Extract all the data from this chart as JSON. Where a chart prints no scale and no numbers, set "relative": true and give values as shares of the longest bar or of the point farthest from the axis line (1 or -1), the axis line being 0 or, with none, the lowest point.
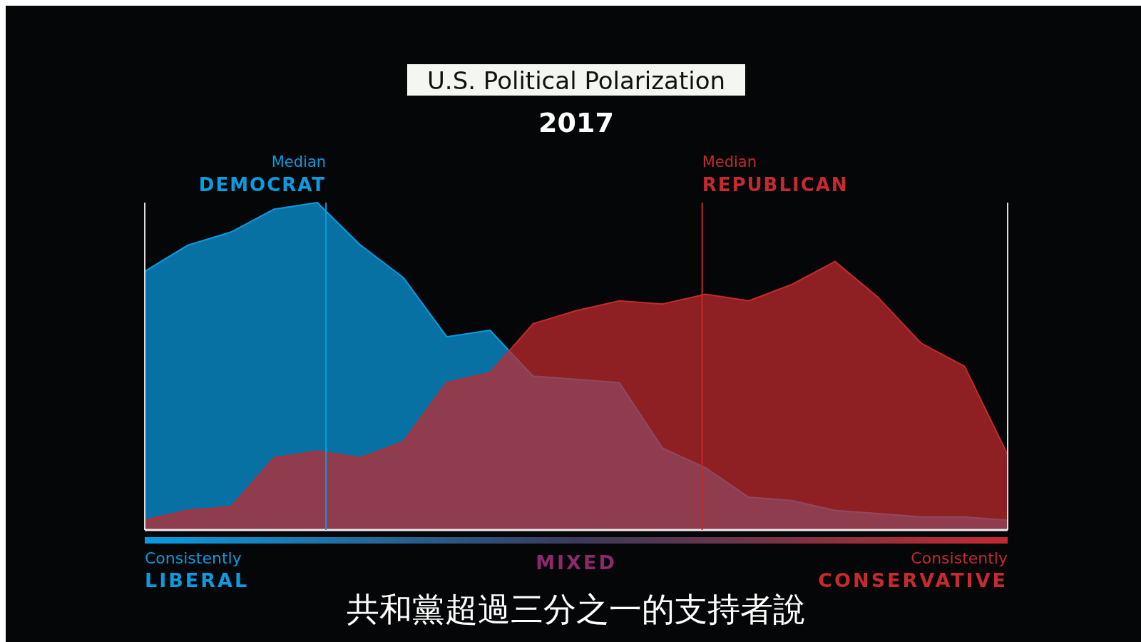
{
  "chart_data": {
    "type": "area",
    "title": "U.S. Political Polarization",
    "subtitle": "2017",
    "relative": true,
    "grid": false,
    "categories": [
      null,
      null,
      null,
      null,
      null,
      null,
      null,
      null,
      null,
      null,
      null,
      null,
      null,
      null,
      null,
      null,
      null,
      null,
      null,
      null,
      null
    ],
    "series": [
      {
        "color": "#0a9be0",
        "values": [
          0.79,
          0.87,
          0.91,
          0.98,
          1.0,
          0.87,
          0.77,
          0.59,
          0.61,
          0.47,
          0.46,
          0.45,
          0.25,
          0.19,
          0.1,
          0.09,
          0.06,
          0.05,
          0.04,
          0.04,
          0.03
        ]
      },
      {
        "color": "#c42a2e",
        "values": [
          0.03,
          0.06,
          0.07,
          0.22,
          0.24,
          0.22,
          0.27,
          0.45,
          0.48,
          0.63,
          0.67,
          0.7,
          0.69,
          0.72,
          0.7,
          0.75,
          0.82,
          0.71,
          0.57,
          0.5,
          0.23
        ]
      }
    ],
    "annotations": [
      "Consistently LIBERAL",
      "MIXED",
      "Consistently CONSERVATIVE",
      "共和黨超過三分之一的支持者說",
      "Median DEMOCRAT",
      "Median REPUBLICAN"
    ]
  }
}
